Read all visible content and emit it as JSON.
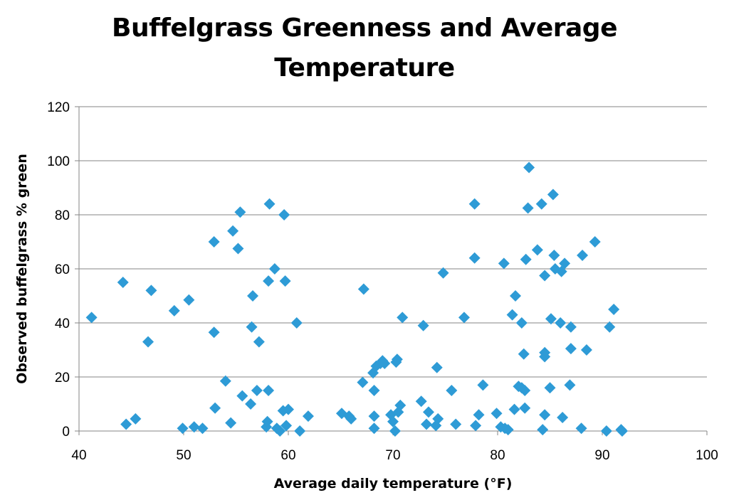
{
  "chart_data": {
    "type": "scatter",
    "title_line1": "Buffelgrass Greenness and Average",
    "title_line2": "Temperature",
    "xlabel": "Average daily temperature (°F)",
    "ylabel": "Observed buffelgrass % green",
    "xlim": [
      40,
      100
    ],
    "ylim": [
      0,
      120
    ],
    "x_ticks": [
      40,
      50,
      60,
      70,
      80,
      90,
      100
    ],
    "y_ticks": [
      0,
      20,
      40,
      60,
      80,
      100,
      120
    ],
    "grid": "horizontal",
    "legend": "none",
    "marker": "diamond",
    "color": "#2e9bd6",
    "points": [
      [
        41.2,
        42
      ],
      [
        44.2,
        55
      ],
      [
        44.5,
        2.5
      ],
      [
        45.4,
        4.5
      ],
      [
        46.6,
        33
      ],
      [
        46.9,
        52
      ],
      [
        49.1,
        44.5
      ],
      [
        49.9,
        1
      ],
      [
        50.5,
        48.5
      ],
      [
        51.0,
        1.5
      ],
      [
        51.8,
        1
      ],
      [
        52.9,
        70
      ],
      [
        52.9,
        36.5
      ],
      [
        53.0,
        8.5
      ],
      [
        54.0,
        18.5
      ],
      [
        54.5,
        3
      ],
      [
        54.7,
        74
      ],
      [
        55.2,
        67.5
      ],
      [
        55.4,
        81
      ],
      [
        55.6,
        13
      ],
      [
        56.4,
        10
      ],
      [
        56.5,
        38.5
      ],
      [
        56.6,
        50
      ],
      [
        57.0,
        15
      ],
      [
        57.2,
        33
      ],
      [
        57.9,
        1.5
      ],
      [
        58.0,
        3.5
      ],
      [
        58.1,
        55.5
      ],
      [
        58.1,
        15
      ],
      [
        58.2,
        84
      ],
      [
        58.7,
        60
      ],
      [
        58.9,
        1
      ],
      [
        59.2,
        0
      ],
      [
        59.5,
        7.5
      ],
      [
        59.6,
        80
      ],
      [
        59.7,
        55.5
      ],
      [
        59.8,
        2
      ],
      [
        60.0,
        8
      ],
      [
        60.8,
        40
      ],
      [
        61.1,
        0
      ],
      [
        61.9,
        5.5
      ],
      [
        65.1,
        6.5
      ],
      [
        65.8,
        5.5
      ],
      [
        66.0,
        4.5
      ],
      [
        67.1,
        18
      ],
      [
        67.2,
        52.5
      ],
      [
        68.1,
        21.5
      ],
      [
        68.2,
        15
      ],
      [
        68.2,
        5.5
      ],
      [
        68.2,
        1
      ],
      [
        68.4,
        24
      ],
      [
        68.8,
        25
      ],
      [
        69.0,
        26
      ],
      [
        69.2,
        25
      ],
      [
        69.8,
        6
      ],
      [
        70.0,
        3.5
      ],
      [
        70.2,
        0
      ],
      [
        70.3,
        25.5
      ],
      [
        70.4,
        26.5
      ],
      [
        70.5,
        7
      ],
      [
        70.7,
        9.5
      ],
      [
        70.9,
        42
      ],
      [
        72.7,
        11
      ],
      [
        72.9,
        39
      ],
      [
        73.2,
        2.5
      ],
      [
        73.4,
        7
      ],
      [
        74.1,
        2
      ],
      [
        74.2,
        23.5
      ],
      [
        74.3,
        4.5
      ],
      [
        74.8,
        58.5
      ],
      [
        75.6,
        15
      ],
      [
        76.0,
        2.5
      ],
      [
        76.8,
        42
      ],
      [
        77.8,
        84
      ],
      [
        77.8,
        64
      ],
      [
        77.9,
        2
      ],
      [
        78.2,
        6
      ],
      [
        78.6,
        17
      ],
      [
        79.9,
        6.5
      ],
      [
        80.3,
        1.5
      ],
      [
        80.6,
        62
      ],
      [
        80.7,
        1
      ],
      [
        81.0,
        0.5
      ],
      [
        81.4,
        43
      ],
      [
        81.6,
        8
      ],
      [
        81.7,
        50
      ],
      [
        82.0,
        16.5
      ],
      [
        82.3,
        40
      ],
      [
        82.3,
        16
      ],
      [
        82.5,
        28.5
      ],
      [
        82.6,
        15
      ],
      [
        82.6,
        8.5
      ],
      [
        82.7,
        63.5
      ],
      [
        82.9,
        82.5
      ],
      [
        83.0,
        97.5
      ],
      [
        83.8,
        67
      ],
      [
        84.2,
        84
      ],
      [
        84.3,
        0.5
      ],
      [
        84.5,
        57.5
      ],
      [
        84.5,
        29
      ],
      [
        84.5,
        27.5
      ],
      [
        84.5,
        6
      ],
      [
        85.0,
        16
      ],
      [
        85.1,
        41.5
      ],
      [
        85.3,
        87.5
      ],
      [
        85.4,
        65
      ],
      [
        85.5,
        60
      ],
      [
        86.0,
        40
      ],
      [
        86.1,
        59
      ],
      [
        86.2,
        5
      ],
      [
        86.4,
        62
      ],
      [
        86.9,
        17
      ],
      [
        87.0,
        30.5
      ],
      [
        87.0,
        38.5
      ],
      [
        88.0,
        1
      ],
      [
        88.1,
        65
      ],
      [
        88.5,
        30
      ],
      [
        89.3,
        70
      ],
      [
        90.4,
        0
      ],
      [
        90.7,
        38.5
      ],
      [
        91.1,
        45
      ],
      [
        91.8,
        0.5
      ],
      [
        91.9,
        0
      ]
    ]
  }
}
